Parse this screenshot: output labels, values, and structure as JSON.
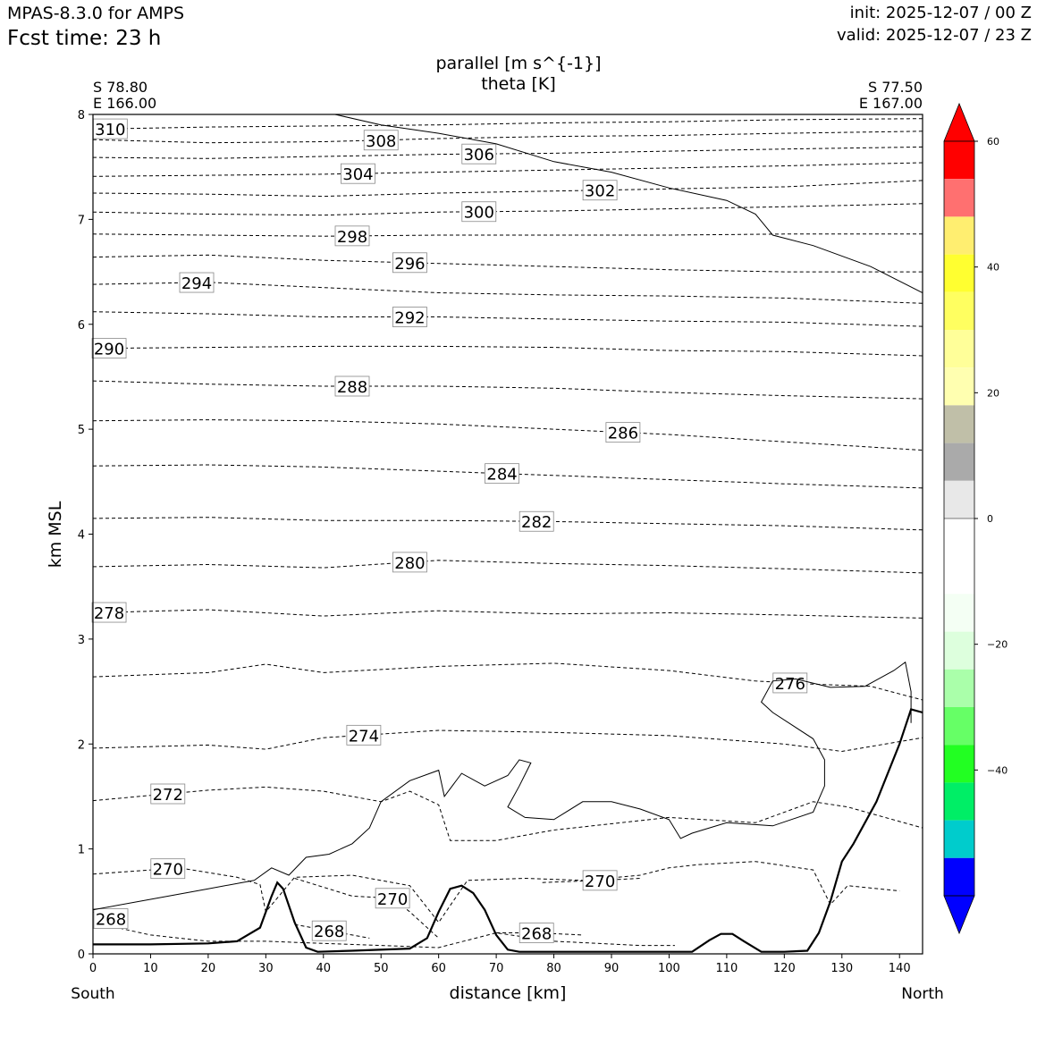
{
  "header": {
    "model": "MPAS-8.3.0 for AMPS",
    "fcst_time": "Fcst time:   23 h",
    "init": "init: 2025-12-07 / 00 Z",
    "valid": "valid: 2025-12-07 / 23 Z"
  },
  "cross_section": {
    "left_lat": "S 78.80",
    "left_lon": "E 166.00",
    "right_lat": "S 77.50",
    "right_lon": "E 167.00",
    "south_label": "South",
    "north_label": "North"
  },
  "chart_data": {
    "type": "cross-section",
    "title": "parallel [m s^{-1}]",
    "subtitle": "theta [K]",
    "xlabel": "distance [km]",
    "ylabel": "km MSL",
    "xlim": [
      0,
      144
    ],
    "ylim": [
      0,
      8
    ],
    "xticks": [
      0,
      10,
      20,
      30,
      40,
      50,
      60,
      70,
      80,
      90,
      100,
      110,
      120,
      130,
      140
    ],
    "yticks": [
      0,
      1,
      2,
      3,
      4,
      5,
      6,
      7,
      8
    ],
    "theta_levels": [
      268,
      270,
      272,
      274,
      276,
      278,
      280,
      282,
      284,
      286,
      288,
      290,
      292,
      294,
      296,
      298,
      300,
      302,
      304,
      306,
      308,
      310
    ],
    "theta_contours": [
      {
        "value": 278,
        "x": [
          0,
          20,
          40,
          60,
          80,
          100,
          120,
          144
        ],
        "y": [
          3.25,
          3.28,
          3.22,
          3.27,
          3.24,
          3.25,
          3.23,
          3.2
        ]
      },
      {
        "value": 280,
        "x": [
          0,
          20,
          40,
          60,
          80,
          100,
          120,
          144
        ],
        "y": [
          3.69,
          3.71,
          3.68,
          3.75,
          3.72,
          3.7,
          3.67,
          3.63
        ]
      },
      {
        "value": 282,
        "x": [
          0,
          20,
          40,
          60,
          80,
          100,
          120,
          144
        ],
        "y": [
          4.15,
          4.16,
          4.13,
          4.13,
          4.12,
          4.1,
          4.08,
          4.04
        ]
      },
      {
        "value": 284,
        "x": [
          0,
          20,
          40,
          60,
          80,
          100,
          120,
          144
        ],
        "y": [
          4.65,
          4.66,
          4.64,
          4.6,
          4.56,
          4.52,
          4.48,
          4.44
        ]
      },
      {
        "value": 286,
        "x": [
          0,
          20,
          40,
          60,
          80,
          100,
          120,
          144
        ],
        "y": [
          5.08,
          5.09,
          5.08,
          5.05,
          5.0,
          4.95,
          4.88,
          4.8
        ]
      },
      {
        "value": 288,
        "x": [
          0,
          20,
          40,
          60,
          80,
          100,
          120,
          144
        ],
        "y": [
          5.46,
          5.43,
          5.41,
          5.41,
          5.39,
          5.35,
          5.32,
          5.29
        ]
      },
      {
        "value": 290,
        "x": [
          0,
          20,
          40,
          60,
          80,
          100,
          120,
          144
        ],
        "y": [
          5.77,
          5.78,
          5.79,
          5.79,
          5.78,
          5.75,
          5.74,
          5.7
        ]
      },
      {
        "value": 292,
        "x": [
          0,
          20,
          40,
          60,
          80,
          100,
          120,
          144
        ],
        "y": [
          6.12,
          6.1,
          6.07,
          6.07,
          6.05,
          6.03,
          6.02,
          5.98
        ]
      },
      {
        "value": 294,
        "x": [
          0,
          20,
          40,
          60,
          80,
          100,
          120,
          144
        ],
        "y": [
          6.38,
          6.4,
          6.35,
          6.3,
          6.28,
          6.27,
          6.25,
          6.2
        ]
      },
      {
        "value": 296,
        "x": [
          0,
          20,
          40,
          60,
          80,
          100,
          120,
          144
        ],
        "y": [
          6.64,
          6.66,
          6.61,
          6.58,
          6.55,
          6.52,
          6.5,
          6.5
        ]
      },
      {
        "value": 298,
        "x": [
          0,
          20,
          40,
          60,
          80,
          100,
          120,
          144
        ],
        "y": [
          6.86,
          6.85,
          6.84,
          6.85,
          6.85,
          6.85,
          6.86,
          6.86
        ]
      },
      {
        "value": 300,
        "x": [
          0,
          20,
          40,
          60,
          80,
          100,
          120,
          144
        ],
        "y": [
          7.07,
          7.05,
          7.04,
          7.07,
          7.08,
          7.1,
          7.12,
          7.15
        ]
      },
      {
        "value": 302,
        "x": [
          0,
          20,
          40,
          60,
          80,
          100,
          120,
          144
        ],
        "y": [
          7.25,
          7.24,
          7.22,
          7.25,
          7.27,
          7.29,
          7.31,
          7.37
        ]
      },
      {
        "value": 304,
        "x": [
          0,
          20,
          40,
          60,
          80,
          100,
          120,
          144
        ],
        "y": [
          7.41,
          7.42,
          7.43,
          7.45,
          7.47,
          7.49,
          7.51,
          7.54
        ]
      },
      {
        "value": 306,
        "x": [
          0,
          20,
          40,
          60,
          80,
          100,
          120,
          144
        ],
        "y": [
          7.59,
          7.58,
          7.6,
          7.62,
          7.63,
          7.65,
          7.67,
          7.69
        ]
      },
      {
        "value": 308,
        "x": [
          0,
          20,
          40,
          60,
          80,
          100,
          120,
          144
        ],
        "y": [
          7.76,
          7.73,
          7.74,
          7.77,
          7.79,
          7.8,
          7.82,
          7.84
        ]
      },
      {
        "value": 310,
        "x": [
          0,
          20,
          40,
          60,
          80,
          100,
          120,
          144
        ],
        "y": [
          7.86,
          7.88,
          7.89,
          7.9,
          7.92,
          7.93,
          7.95,
          7.96
        ]
      }
    ],
    "terrain": {
      "x": [
        0,
        10,
        20,
        25,
        29,
        31,
        32,
        33,
        35,
        37,
        39,
        45,
        55,
        58,
        60,
        62,
        64,
        66,
        68,
        70,
        72,
        74,
        80,
        90,
        100,
        104,
        107,
        109,
        111,
        113,
        116,
        120,
        124,
        126,
        128,
        130,
        132,
        136,
        140,
        142,
        144
      ],
      "y": [
        0.09,
        0.09,
        0.1,
        0.12,
        0.25,
        0.55,
        0.68,
        0.62,
        0.3,
        0.06,
        0.02,
        0.03,
        0.05,
        0.15,
        0.4,
        0.62,
        0.65,
        0.58,
        0.42,
        0.18,
        0.04,
        0.02,
        0.02,
        0.02,
        0.02,
        0.02,
        0.13,
        0.19,
        0.19,
        0.12,
        0.02,
        0.02,
        0.03,
        0.2,
        0.5,
        0.88,
        1.05,
        1.45,
        2.0,
        2.33,
        2.3
      ]
    },
    "colorbar": {
      "ticks": [
        60,
        40,
        20,
        0,
        -20,
        -40
      ],
      "colors": [
        "#ff0000",
        "#ff0000",
        "#ff7070",
        "#ffee70",
        "#ffff30",
        "#ffff60",
        "#ffff99",
        "#ffffb0",
        "#c0bfa8",
        "#aaaaaa",
        "#e8e8e8",
        "#ffffff",
        "#ffffff",
        "#f4fff4",
        "#ddffdd",
        "#aaffaa",
        "#66ff66",
        "#22ff22",
        "#00ee66",
        "#00cccc",
        "#0000ff",
        "#0000ff"
      ]
    }
  }
}
